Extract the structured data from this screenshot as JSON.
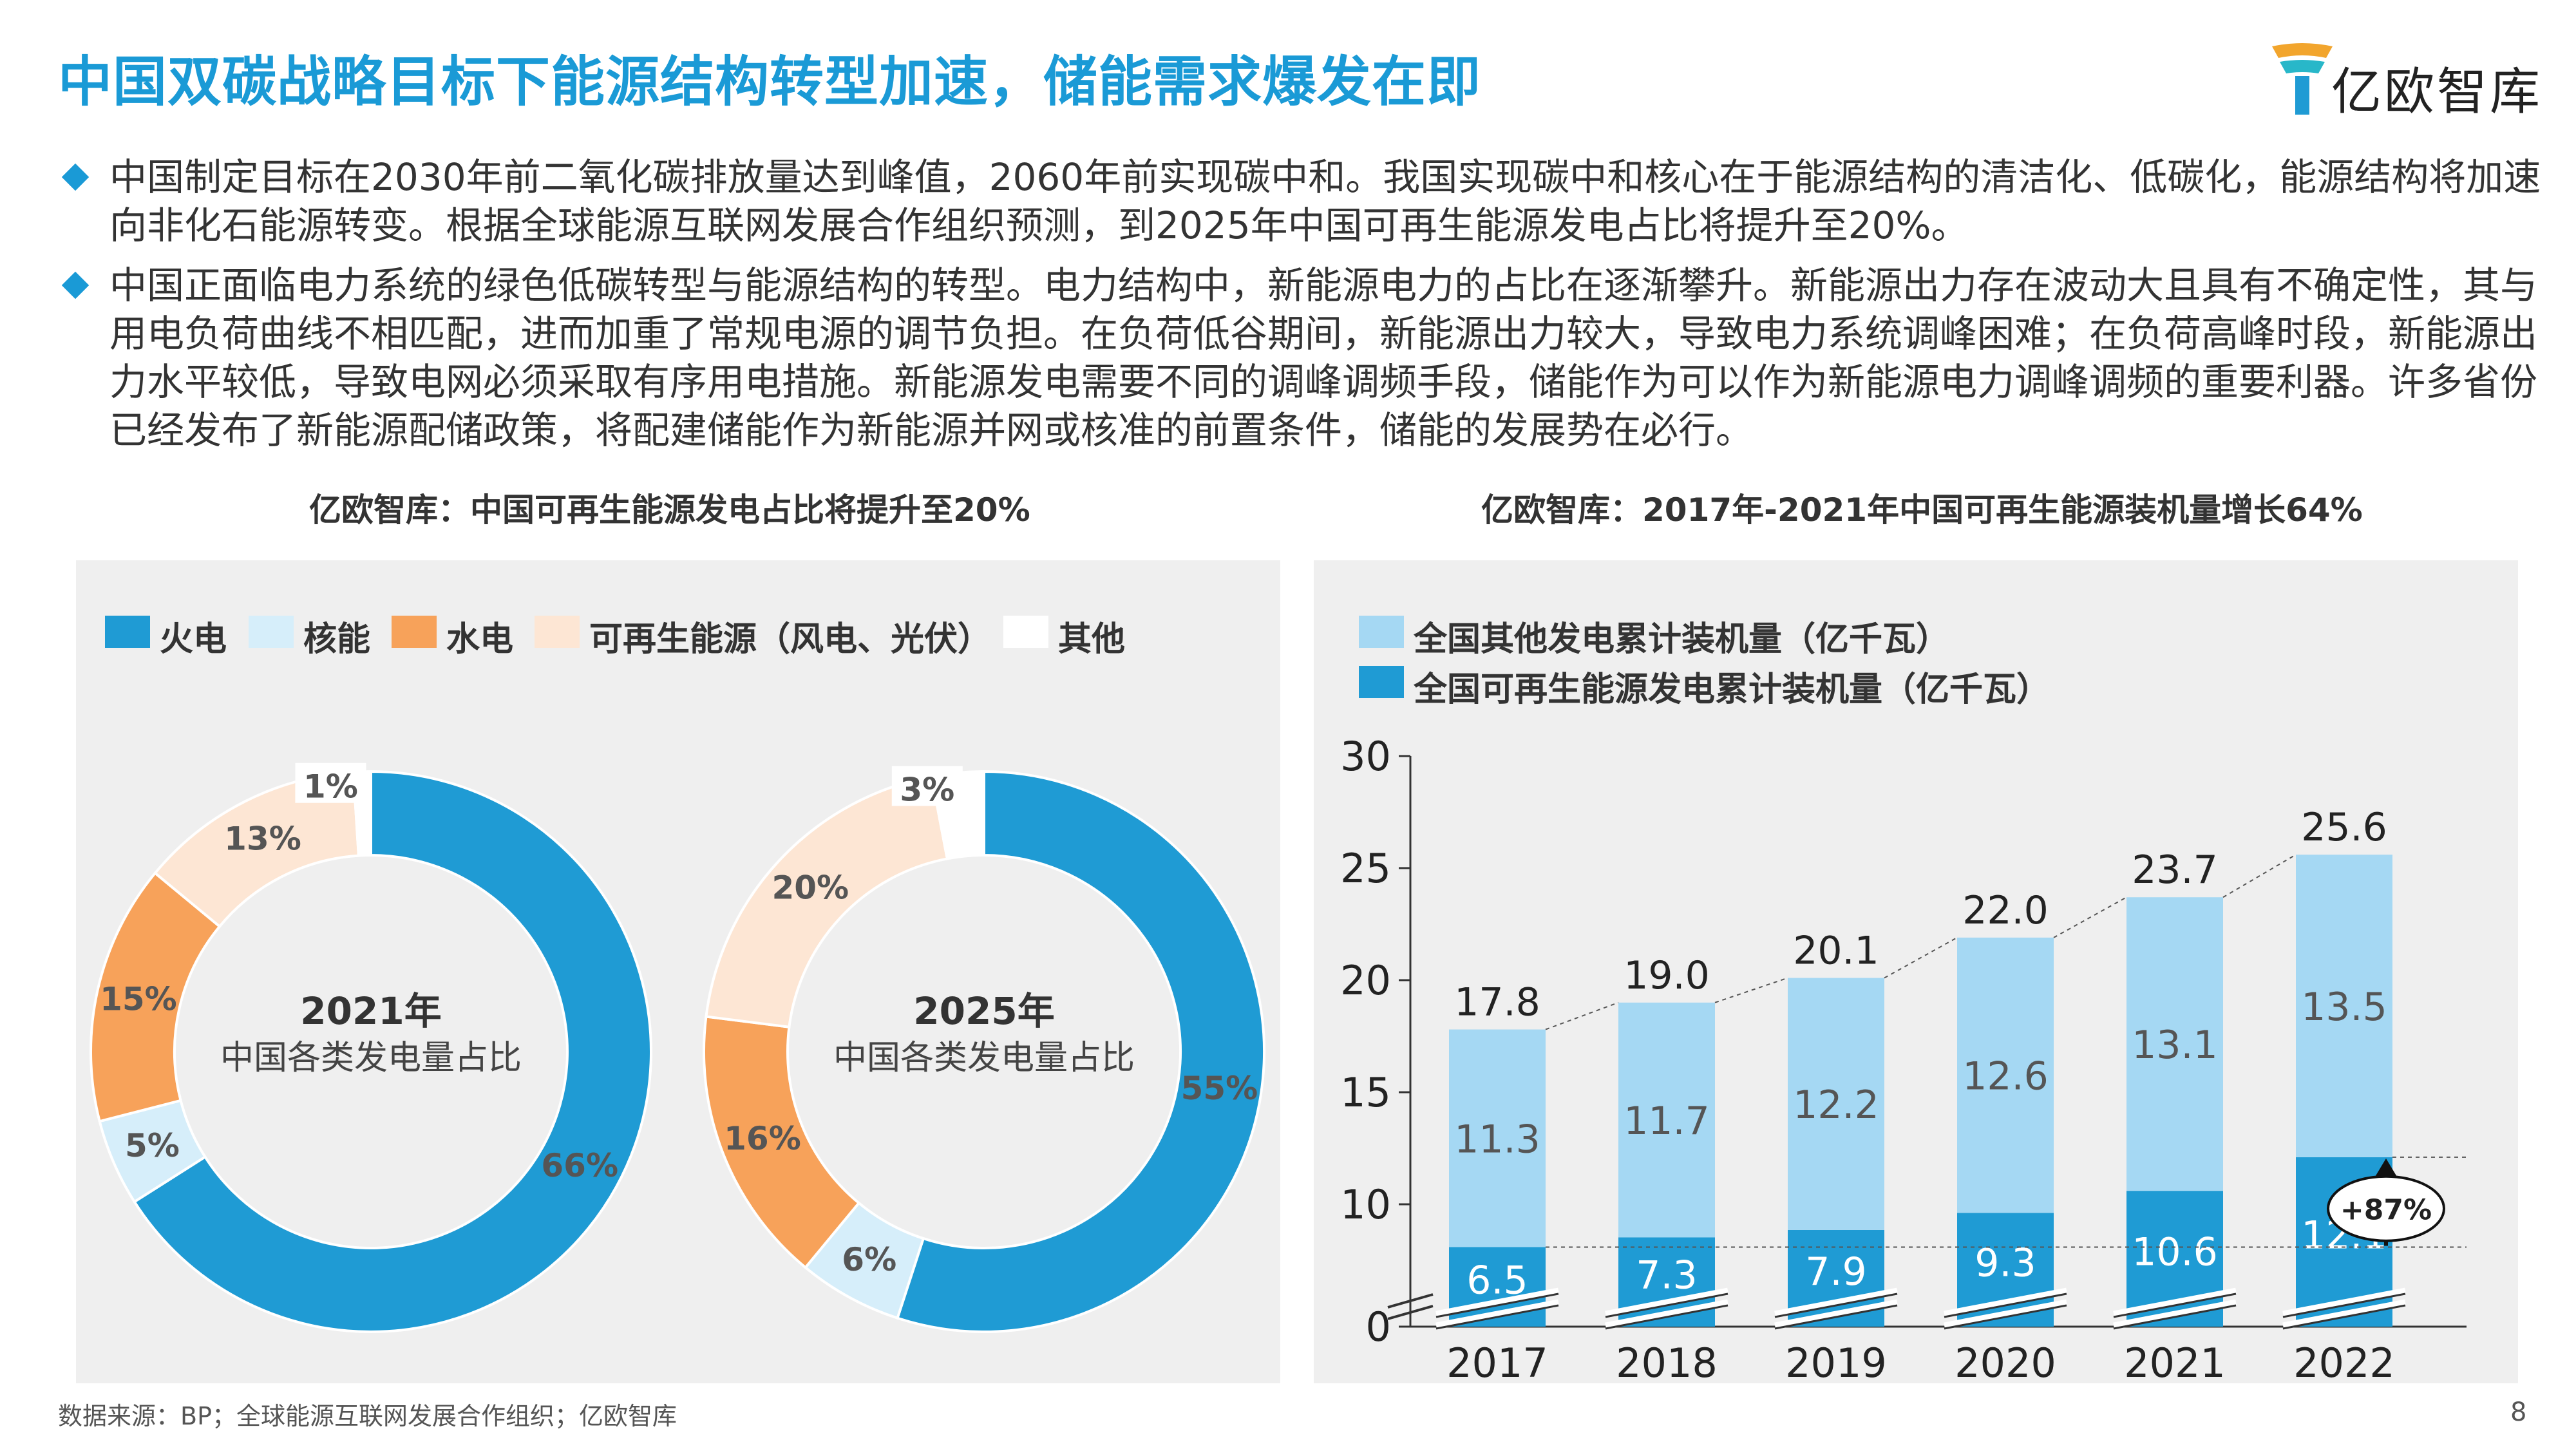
{
  "header": {
    "title": "中国双碳战略目标下能源结构转型加速，储能需求爆发在即",
    "logo_text": "亿欧智库"
  },
  "bullets": [
    "中国制定目标在2030年前二氧化碳排放量达到峰值，2060年前实现碳中和。我国实现碳中和核心在于能源结构的清洁化、低碳化，能源结构将加速向非化石能源转变。根据全球能源互联网发展合作组织预测，到2025年中国可再生能源发电占比将提升至20%。",
    "中国正面临电力系统的绿色低碳转型与能源结构的转型。电力结构中，新能源电力的占比在逐渐攀升。新能源出力存在波动大且具有不确定性，其与用电负荷曲线不相匹配，进而加重了常规电源的调节负担。在负荷低谷期间，新能源出力较大，导致电力系统调峰困难；在负荷高峰时段，新能源出力水平较低，导致电网必须采取有序用电措施。新能源发电需要不同的调峰调频手段，储能作为可以作为新能源电力调峰调频的重要利器。许多省份已经发布了新能源配储政策，将配建储能作为新能源并网或核准的前置条件，储能的发展势在必行。"
  ],
  "footer": {
    "source": "数据来源：BP；全球能源互联网发展合作组织；亿欧智库",
    "page": "8"
  },
  "chart_data": [
    {
      "type": "pie",
      "variant": "donut",
      "title": "亿欧智库：中国可再生能源发电占比将提升至20%",
      "legend": [
        "火电",
        "核能",
        "水电",
        "可再生能源（风电、光伏）",
        "其他"
      ],
      "colors": [
        "#1f9bd4",
        "#d6eefa",
        "#f7a25a",
        "#fde6d4",
        "#ffffff"
      ],
      "donuts": [
        {
          "center_title": "2021年",
          "center_subtitle": "中国各类发电量占比",
          "values": [
            66,
            5,
            15,
            13,
            1
          ],
          "labels": [
            "66%",
            "5%",
            "15%",
            "13%",
            "1%"
          ]
        },
        {
          "center_title": "2025年",
          "center_subtitle": "中国各类发电量占比",
          "values": [
            55,
            6,
            16,
            20,
            3
          ],
          "labels": [
            "55%",
            "6%",
            "16%",
            "20%",
            "3%"
          ]
        }
      ]
    },
    {
      "type": "bar",
      "variant": "stacked",
      "title": "亿欧智库：2017年-2021年中国可再生能源装机量增长64%",
      "categories": [
        "2017",
        "2018",
        "2019",
        "2020",
        "2021",
        "2022"
      ],
      "series": [
        {
          "name": "全国可再生能源发电累计装机量（亿千瓦）",
          "color": "#1f9bd4",
          "values": [
            6.5,
            7.3,
            7.9,
            9.3,
            10.6,
            12.1
          ]
        },
        {
          "name": "全国其他发电累计装机量（亿千瓦）",
          "color": "#a5d8f3",
          "values": [
            11.3,
            11.7,
            12.2,
            12.6,
            13.1,
            13.5
          ]
        }
      ],
      "totals": [
        "17.8",
        "19.0",
        "20.1",
        "22.0",
        "23.7",
        "25.6"
      ],
      "y_ticks": [
        "0",
        "10",
        "15",
        "20",
        "25",
        "30"
      ],
      "ylim": [
        0,
        30
      ],
      "axis_break": true,
      "annotation": "+87%"
    }
  ]
}
